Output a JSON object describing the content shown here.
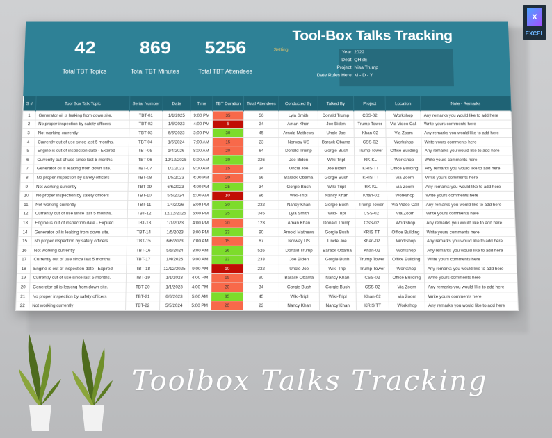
{
  "badge": {
    "label": "EXCEL"
  },
  "header": {
    "title": "Tool-Box Talks Tracking",
    "setting_label": "Setting",
    "kpis": [
      {
        "value": "42",
        "label": "Total TBT Topics"
      },
      {
        "value": "869",
        "label": "Total TBT Minutes"
      },
      {
        "value": "5256",
        "label": "Total TBT Attendees"
      }
    ],
    "info": [
      {
        "key": "Year:",
        "value": "2022"
      },
      {
        "key": "Dept:",
        "value": "QHSE"
      },
      {
        "key": "Project:",
        "value": "Nisa Trump"
      },
      {
        "key": "Date Rules Here:",
        "value": "M - D - Y"
      }
    ]
  },
  "colors": {
    "banner": "#2e8196",
    "header_row": "#1f6375",
    "green": "#7ddc2b",
    "orange": "#f8694a",
    "darkred": "#c10d05"
  },
  "table": {
    "columns": [
      "S #",
      "Tool Box Talk Topic",
      "Serial Number",
      "Date",
      "Time",
      "TBT Duration",
      "Total Attendees",
      "Conducted By",
      "Talked By",
      "Project",
      "Location",
      "Note - Remarks"
    ],
    "rows": [
      [
        "1",
        "Generator oil is leaking from down site.",
        "TBT-01",
        "1/1/2025",
        "9:00 PM",
        "35",
        "56",
        "Lyla Smith",
        "Donald Trump",
        "CSS-02",
        "Workshop",
        "Any remarks you would like to add here",
        "orange"
      ],
      [
        "2",
        "No proper inspection by safety officers",
        "TBT-02",
        "1/5/2023",
        "4:00 PM",
        "5",
        "34",
        "Aman Khan",
        "Joe Biden",
        "Trump Tower",
        "Via Video Call",
        "Write yours comments here",
        "darkred"
      ],
      [
        "3",
        "Not working currently",
        "TBT-03",
        "6/6/2023",
        "3:00 PM",
        "30",
        "45",
        "Arnold Mathews",
        "Uncle Joe",
        "Khan-02",
        "Via Zoom",
        "Any remarks you would like to add here",
        "green"
      ],
      [
        "4",
        "Currently out of use since last 5 months.",
        "TBT-04",
        "1/5/2024",
        "7:00 AM",
        "15",
        "23",
        "Norway US",
        "Barack Obama",
        "CSS-02",
        "Workshop",
        "Write yours comments here",
        "orange"
      ],
      [
        "5",
        "Engine is out of inspection date - Expired",
        "TBT-05",
        "1/4/2026",
        "8:00 AM",
        "20",
        "64",
        "Donald Trump",
        "Gorgie Bush",
        "Trump Tower",
        "Office Building",
        "Any remarks you would like to add here",
        "orange"
      ],
      [
        "6",
        "Currently out of use since last 5 months.",
        "TBT-06",
        "12/12/2025",
        "9:00 AM",
        "30",
        "326",
        "Joe Biden",
        "Wiki-Tripl",
        "RK-KL",
        "Workshop",
        "Write yours comments here",
        "green"
      ],
      [
        "7",
        "Generator oil is leaking from down site.",
        "TBT-07",
        "1/1/2023",
        "9:00 AM",
        "15",
        "34",
        "Uncle Joe",
        "Joe Biden",
        "KRIS TT",
        "Office Building",
        "Any remarks you would like to add here",
        "orange"
      ],
      [
        "8",
        "No proper inspection by safety officers",
        "TBT-08",
        "1/5/2023",
        "4:00 PM",
        "20",
        "56",
        "Barack Obama",
        "Gorgie Bush",
        "KRIS TT",
        "Via Zoom",
        "Write yours comments here",
        "orange"
      ],
      [
        "9",
        "Not working currently",
        "TBT-09",
        "6/6/2023",
        "4:00 PM",
        "25",
        "34",
        "Gorgie Bush",
        "Wiki-Tripl",
        "RK-KL",
        "Via Zoom",
        "Any remarks you would like to add here",
        "green"
      ],
      [
        "10",
        "No proper inspection by safety officers",
        "TBT-10",
        "5/5/2024",
        "5:00 AM",
        "10",
        "96",
        "Wiki-Tripl",
        "Nancy Khan",
        "Khan-02",
        "Workshop",
        "Write yours comments here",
        "darkred"
      ],
      [
        "11",
        "Not working currently",
        "TBT-11",
        "1/4/2026",
        "5:00 PM",
        "30",
        "232",
        "Nancy Khan",
        "Gorgie Bush",
        "Trump Tower",
        "Via Video Call",
        "Any remarks you would like to add here",
        "green"
      ],
      [
        "12",
        "Currently out of use since last 5 months.",
        "TBT-12",
        "12/12/2025",
        "6:00 PM",
        "25",
        "345",
        "Lyla Smith",
        "Wiki-Tripl",
        "CSS-02",
        "Via Zoom",
        "Write yours comments here",
        "green"
      ],
      [
        "13",
        "Engine is out of inspection date - Expired",
        "TBT-13",
        "1/1/2023",
        "4:00 PM",
        "20",
        "123",
        "Aman Khan",
        "Donald Trump",
        "CSS-02",
        "Workshop",
        "Any remarks you would like to add here",
        "orange"
      ],
      [
        "14",
        "Generator oil is leaking from down site.",
        "TBT-14",
        "1/5/2023",
        "3:00 PM",
        "23",
        "90",
        "Arnold Mathews",
        "Gorgie Bush",
        "KRIS TT",
        "Office Building",
        "Write yours comments here",
        "green"
      ],
      [
        "15",
        "No proper inspection by safety officers",
        "TBT-15",
        "6/6/2023",
        "7:00 AM",
        "15",
        "67",
        "Norway US",
        "Uncle Joe",
        "Khan-02",
        "Workshop",
        "Any remarks you would like to add here",
        "orange"
      ],
      [
        "16",
        "Not working currently",
        "TBT-16",
        "5/5/2024",
        "8:00 AM",
        "26",
        "526",
        "Donald Trump",
        "Barack Obama",
        "Khan-02",
        "Workshop",
        "Any remarks you would like to add here",
        "green"
      ],
      [
        "17",
        "Currently out of use since last 5 months.",
        "TBT-17",
        "1/4/2026",
        "9:00 AM",
        "23",
        "233",
        "Joe Biden",
        "Gorgie Bush",
        "Trump Tower",
        "Office Building",
        "Write yours comments here",
        "green"
      ],
      [
        "18",
        "Engine is out of inspection date - Expired",
        "TBT-18",
        "12/12/2025",
        "9:00 AM",
        "10",
        "232",
        "Uncle Joe",
        "Wiki-Tripl",
        "Trump Tower",
        "Workshop",
        "Any remarks you would like to add here",
        "darkred"
      ],
      [
        "19",
        "Currently out of use since last 5 months.",
        "TBT-19",
        "1/1/2023",
        "4:00 PM",
        "15",
        "90",
        "Barack Obama",
        "Nancy Khan",
        "CSS-02",
        "Office Building",
        "Write yours comments here",
        "orange"
      ],
      [
        "20",
        "Generator oil is leaking from down site.",
        "TBT-20",
        "1/1/2023",
        "4:00 PM",
        "20",
        "34",
        "Gorgie Bush",
        "Gorgie Bush",
        "CSS-02",
        "Via Zoom",
        "Any remarks you would like to add here",
        "orange"
      ],
      [
        "21",
        "No proper inspection by safety officers",
        "TBT-21",
        "6/6/2023",
        "5:00 AM",
        "35",
        "45",
        "Wiki-Tripl",
        "Wiki-Tripl",
        "Khan-02",
        "Via Zoom",
        "Write yours comments here",
        "green"
      ],
      [
        "22",
        "Not working currently",
        "TBT-22",
        "5/5/2024",
        "5:00 PM",
        "20",
        "23",
        "Nancy Khan",
        "Nancy Khan",
        "KRIS TT",
        "Workshop",
        "Any remarks you would like to add here",
        "orange"
      ]
    ]
  },
  "caption": "Toolbox Talks Tracking"
}
